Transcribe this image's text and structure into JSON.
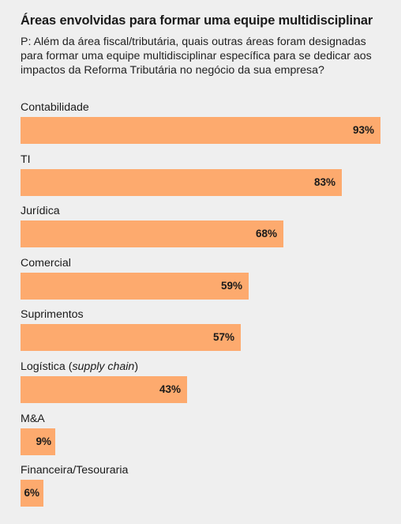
{
  "title": "Áreas envolvidas para formar uma equipe multidisciplinar",
  "question": "P: Além da área fiscal/tributária, quais outras áreas foram designadas para formar uma equipe multidisciplinar específica para se dedicar aos impactos da Reforma Tributária no negócio da sua empresa?",
  "chart_data": {
    "type": "bar",
    "orientation": "horizontal",
    "title": "Áreas envolvidas para formar uma equipe multidisciplinar",
    "categories": [
      "Contabilidade",
      "TI",
      "Jurídica",
      "Comercial",
      "Suprimentos",
      "Logística (supply chain)",
      "M&A",
      "Financeira/Tesouraria"
    ],
    "category_parts": [
      {
        "main": "Contabilidade",
        "italic": "",
        "tail": ""
      },
      {
        "main": "TI",
        "italic": "",
        "tail": ""
      },
      {
        "main": "Jurídica",
        "italic": "",
        "tail": ""
      },
      {
        "main": "Comercial",
        "italic": "",
        "tail": ""
      },
      {
        "main": "Suprimentos",
        "italic": "",
        "tail": ""
      },
      {
        "main": "Logística (",
        "italic": "supply chain",
        "tail": ")"
      },
      {
        "main": "M&A",
        "italic": "",
        "tail": ""
      },
      {
        "main": "Financeira/Tesouraria",
        "italic": "",
        "tail": ""
      }
    ],
    "values": [
      93,
      83,
      68,
      59,
      57,
      43,
      9,
      6
    ],
    "value_labels": [
      "93%",
      "83%",
      "68%",
      "59%",
      "57%",
      "43%",
      "9%",
      "6%"
    ],
    "unit": "%",
    "xlim": [
      0,
      93
    ],
    "grid": false,
    "legend": "none",
    "bar_color": "#fdaa6e"
  }
}
